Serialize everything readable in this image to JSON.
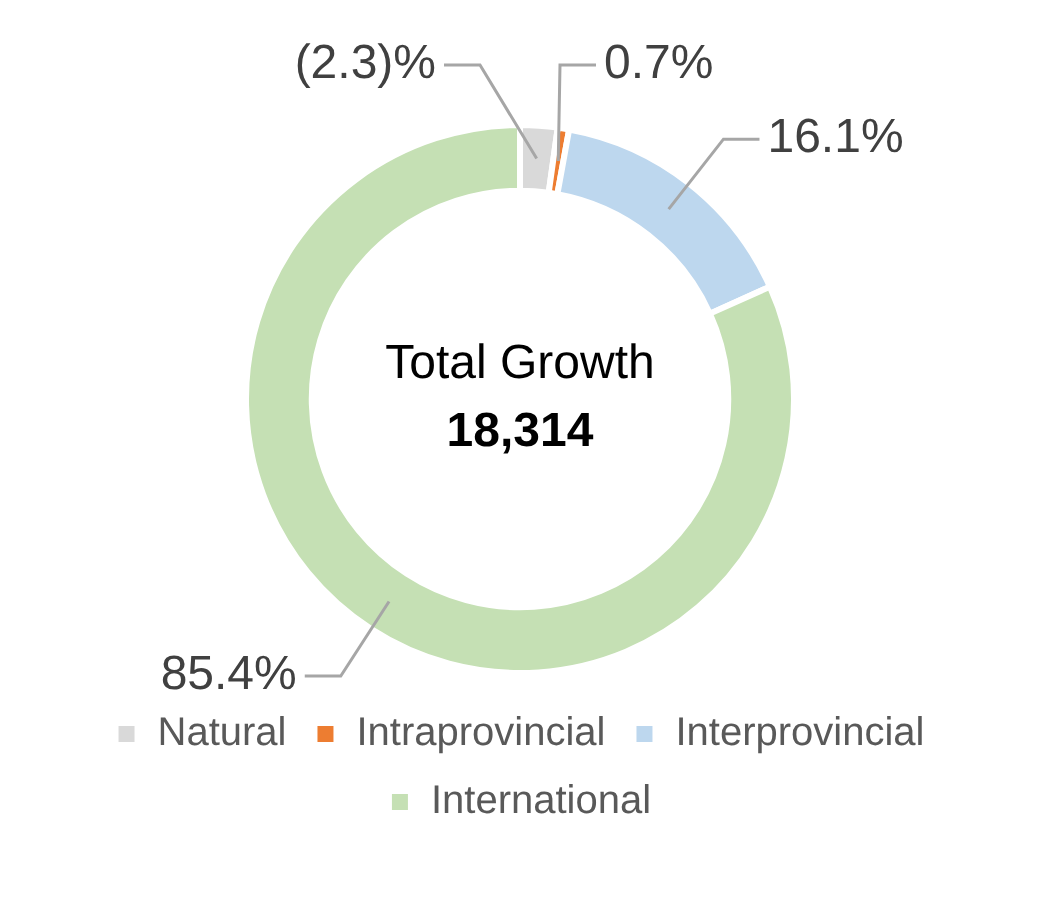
{
  "chart_data": {
    "type": "donut",
    "categories": [
      "Natural",
      "Intraprovincial",
      "Interprovincial",
      "International"
    ],
    "values": [
      2.3,
      0.7,
      16.1,
      85.4
    ],
    "value_labels": [
      "(2.3)%",
      "0.7%",
      "16.1%",
      "85.4%"
    ],
    "colors": [
      "#d9d9d9",
      "#ed7d31",
      "#bdd7ee",
      "#c5e0b4"
    ],
    "annotations": [
      "Total Growth",
      "18,314"
    ],
    "legend": "bottom"
  }
}
